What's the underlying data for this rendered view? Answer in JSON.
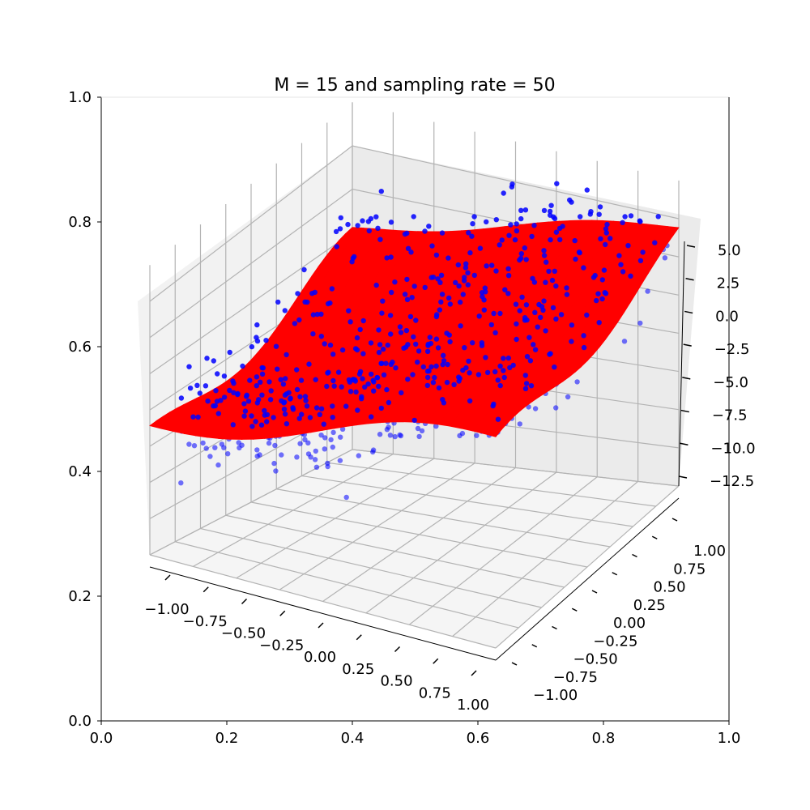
{
  "chart_data": [
    {
      "type": "scatter",
      "role": "outer-2d-axes",
      "title": "M = 15 and sampling rate = 50",
      "xlim": [
        0.0,
        1.0
      ],
      "ylim": [
        0.0,
        1.0
      ],
      "x_ticks": [
        "0.0",
        "0.2",
        "0.4",
        "0.6",
        "0.8",
        "1.0"
      ],
      "y_ticks": [
        "0.0",
        "0.2",
        "0.4",
        "0.6",
        "0.8",
        "1.0"
      ],
      "grid": false,
      "points": []
    },
    {
      "type": "3d-surface",
      "role": "3d-axes",
      "x_ticks": [
        "−1.00",
        "−0.75",
        "−0.50",
        "−0.25",
        "0.00",
        "0.25",
        "0.50",
        "0.75",
        "1.00"
      ],
      "y_ticks": [
        "−1.00",
        "−0.75",
        "−0.50",
        "−0.25",
        "0.00",
        "0.25",
        "0.50",
        "0.75",
        "1.00"
      ],
      "z_ticks": [
        "5.0",
        "2.5",
        "0.0",
        "−2.5",
        "−5.0",
        "−7.5",
        "−10.0",
        "−12.5"
      ],
      "xlim": [
        -1.0,
        1.0
      ],
      "ylim": [
        -1.0,
        1.0
      ],
      "zlim": [
        -12.5,
        5.0
      ],
      "grid": true,
      "surface_color": "#ff0000",
      "scatter_color": "#0000ff",
      "scatter_count_estimate": 900
    }
  ]
}
